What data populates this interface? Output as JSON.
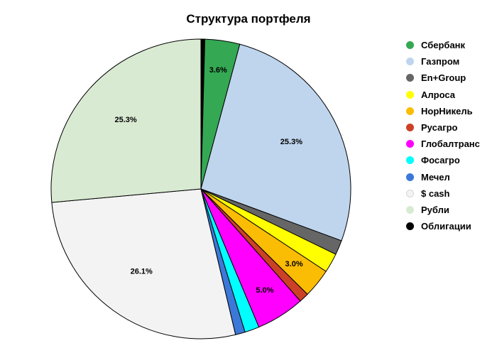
{
  "chart_data": {
    "type": "pie",
    "title": "Структура портфеля",
    "slices": [
      {
        "name": "Облигации",
        "value": 0.4,
        "color": "#000000"
      },
      {
        "name": "Сбербанк",
        "value": 3.6,
        "color": "#34a853",
        "label": "3.6%"
      },
      {
        "name": "Газпром",
        "value": 25.3,
        "color": "#bfd5ee",
        "label": "25.3%"
      },
      {
        "name": "En+Group",
        "value": 1.5,
        "color": "#666666"
      },
      {
        "name": "Алроса",
        "value": 2.0,
        "color": "#ffff00"
      },
      {
        "name": "НорНикель",
        "value": 3.0,
        "color": "#fbbc04",
        "label": "3.0%"
      },
      {
        "name": "Русагро",
        "value": 1.0,
        "color": "#cc4125"
      },
      {
        "name": "Глобалтранс",
        "value": 5.0,
        "color": "#ff00ff",
        "label": "5.0%"
      },
      {
        "name": "Фосагро",
        "value": 1.5,
        "color": "#00ffff"
      },
      {
        "name": "Мечел",
        "value": 1.0,
        "color": "#3c78d8"
      },
      {
        "name": "$ cash",
        "value": 26.1,
        "color": "#f3f3f3",
        "label": "26.1%"
      },
      {
        "name": "Рубли",
        "value": 25.3,
        "color": "#d9ead3",
        "label": "25.3%"
      }
    ],
    "legend": [
      {
        "name": "Сбербанк",
        "color": "#34a853"
      },
      {
        "name": "Газпром",
        "color": "#bfd5ee"
      },
      {
        "name": "En+Group",
        "color": "#666666"
      },
      {
        "name": "Алроса",
        "color": "#ffff00"
      },
      {
        "name": "НорНикель",
        "color": "#fbbc04"
      },
      {
        "name": "Русагро",
        "color": "#cc4125"
      },
      {
        "name": "Глобалтранс",
        "color": "#ff00ff"
      },
      {
        "name": "Фосагро",
        "color": "#00ffff"
      },
      {
        "name": "Мечел",
        "color": "#3c78d8"
      },
      {
        "name": "$ cash",
        "color": "#f3f3f3"
      },
      {
        "name": "Рубли",
        "color": "#d9ead3"
      },
      {
        "name": "Облигации",
        "color": "#000000"
      }
    ],
    "legend_position": "right"
  }
}
